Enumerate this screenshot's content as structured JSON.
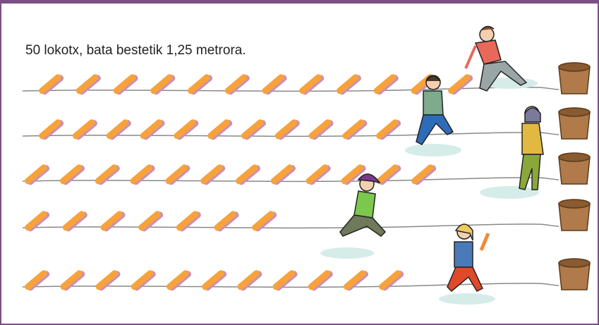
{
  "caption": "50 lokotx, bata bestetik 1,25 metrora."
}
